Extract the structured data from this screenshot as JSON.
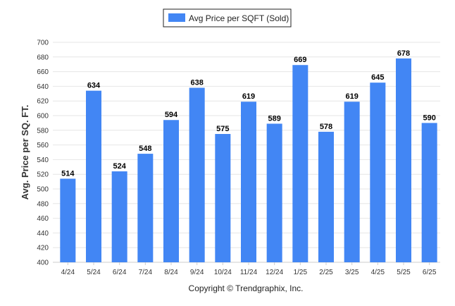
{
  "chart_data": {
    "type": "bar",
    "categories": [
      "4/24",
      "5/24",
      "6/24",
      "7/24",
      "8/24",
      "9/24",
      "10/24",
      "11/24",
      "12/24",
      "1/25",
      "2/25",
      "3/25",
      "4/25",
      "5/25",
      "6/25"
    ],
    "series": [
      {
        "name": "Avg Price per SQFT (Sold)",
        "values": [
          514,
          634,
          524,
          548,
          594,
          638,
          575,
          619,
          589,
          669,
          578,
          619,
          645,
          678,
          590
        ],
        "color": "#4286f4"
      }
    ],
    "xlabel": "",
    "ylabel": "Avg. Price per SQ. FT.",
    "ylim": [
      400,
      700
    ],
    "yticks": [
      400,
      420,
      440,
      460,
      480,
      500,
      520,
      540,
      560,
      580,
      600,
      620,
      640,
      660,
      680,
      700
    ],
    "grid": true,
    "legend_position": "top-center",
    "data_labels": true
  },
  "footer": {
    "copyright": "Copyright © Trendgraphix, Inc."
  },
  "colors": {
    "bar": "#4286f4",
    "grid": "#e6e6e6",
    "legend_border": "#222222"
  }
}
